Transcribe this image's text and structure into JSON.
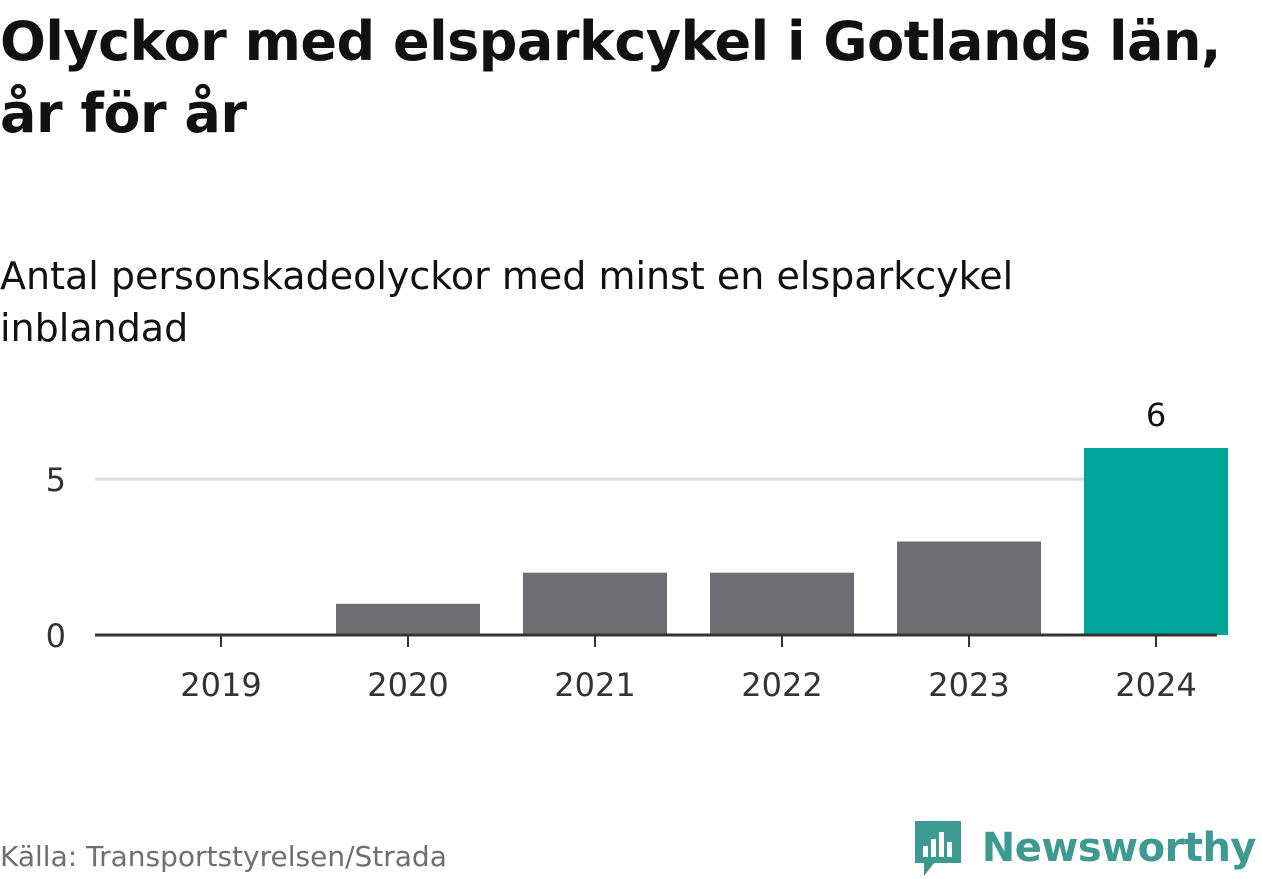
{
  "title": "Olyckor med elsparkcykel i Gotlands län, år för år",
  "subtitle": "Antal personskadeolyckor med minst en elsparkcykel inblandad",
  "source": "Källa: Transportstyrelsen/Strada",
  "brand": {
    "name": "Newsworthy",
    "icon": "newsworthy-chat-bars-icon",
    "color": "#3d9a92"
  },
  "chart_data": {
    "type": "bar",
    "categories": [
      "2019",
      "2020",
      "2021",
      "2022",
      "2023",
      "2024"
    ],
    "values": [
      0,
      1,
      2,
      2,
      3,
      6
    ],
    "ylim": [
      0,
      6
    ],
    "yticks": [
      0,
      5
    ],
    "grid": true,
    "data_labels": [
      {
        "category": "2024",
        "text": "6"
      }
    ],
    "highlight_category": "2024",
    "colors": {
      "bar": "#6e6d72",
      "highlight": "#00a69a",
      "grid": "#dddddd",
      "axis": "#333333",
      "tick_label": "#333333"
    },
    "xlabel": "",
    "ylabel": ""
  }
}
